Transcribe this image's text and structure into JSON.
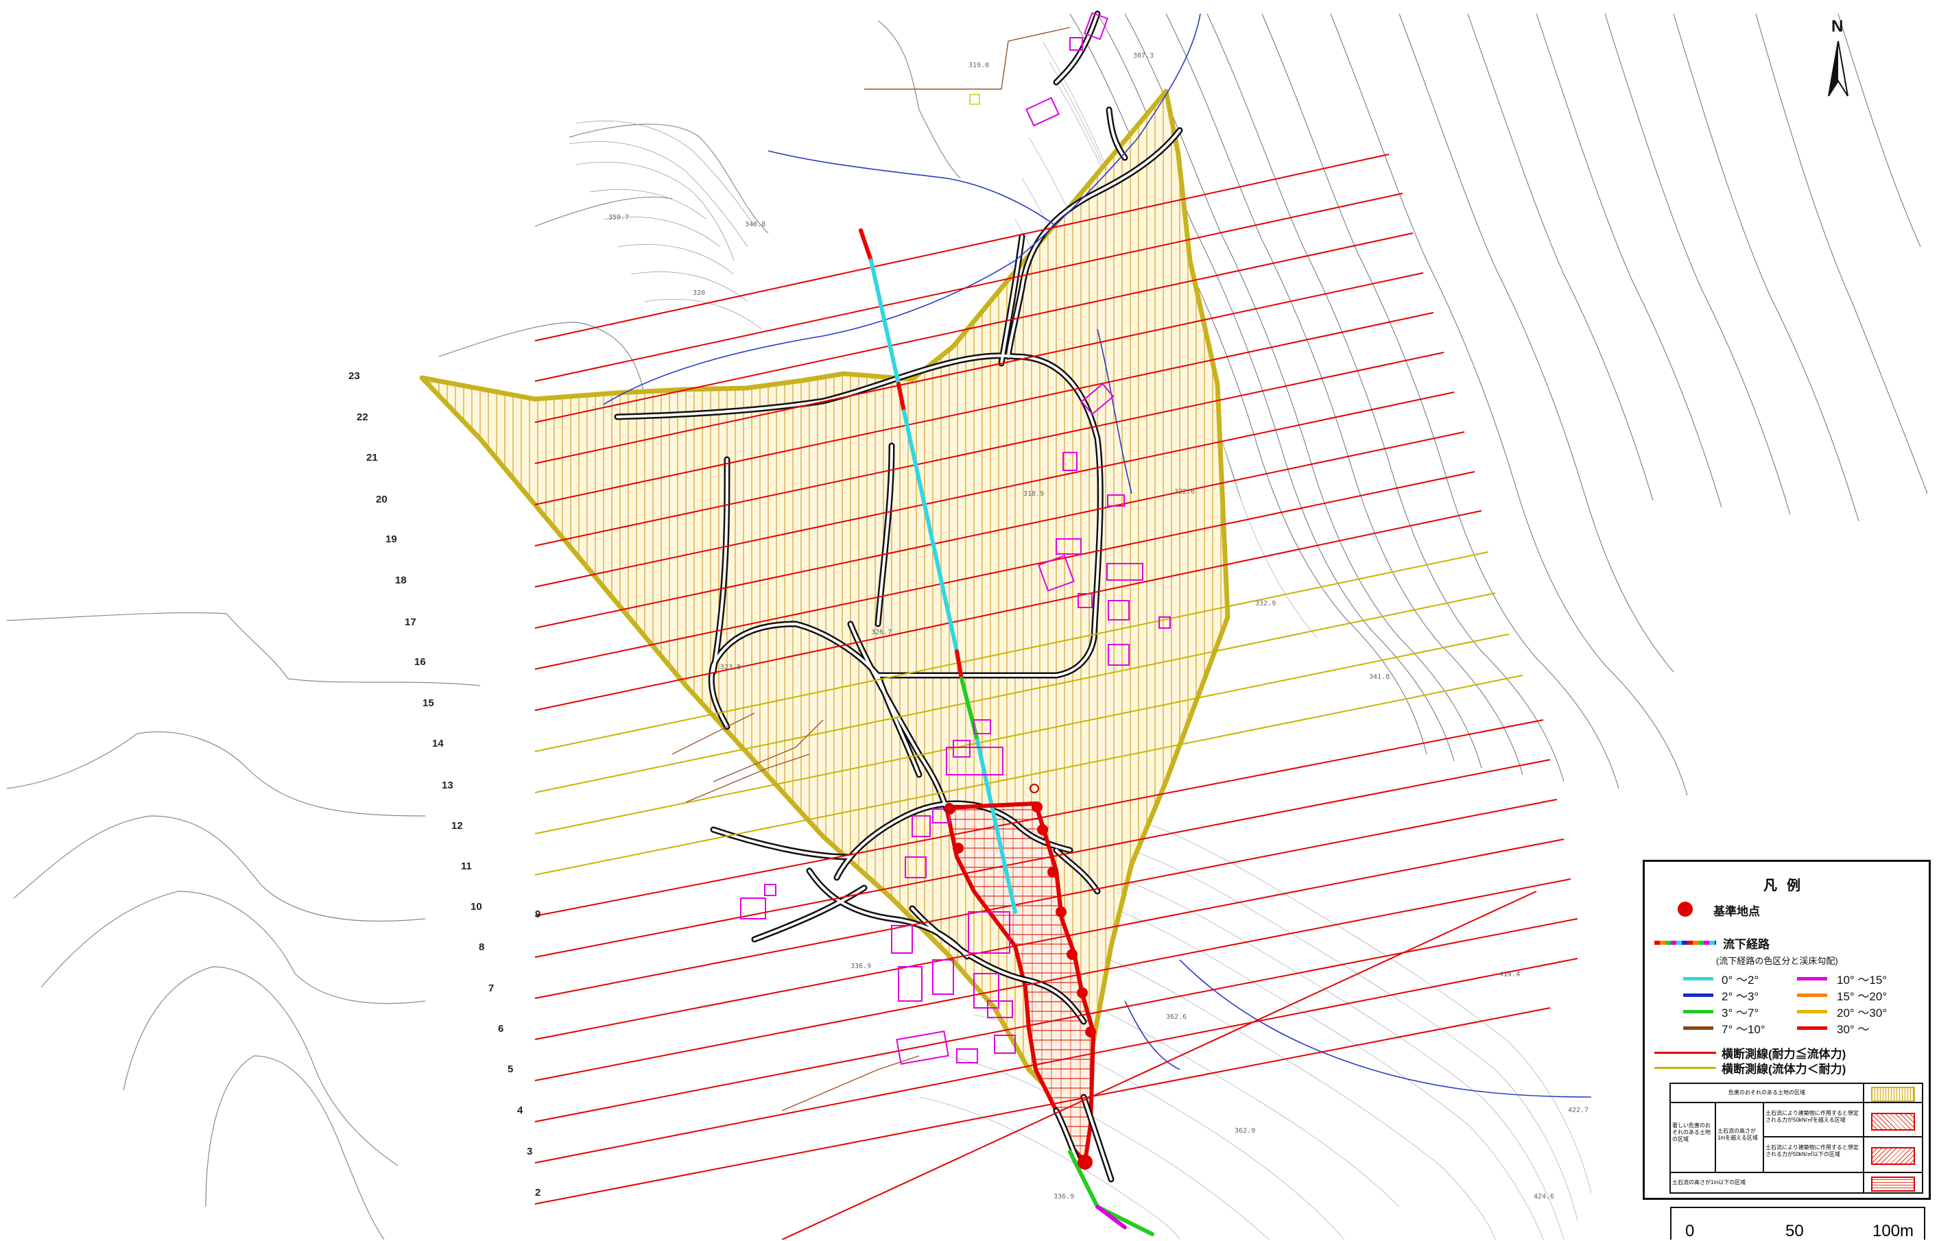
{
  "sections": [
    "23",
    "22",
    "21",
    "20",
    "19",
    "18",
    "17",
    "16",
    "15",
    "14",
    "13",
    "12",
    "11",
    "10",
    "9",
    "8",
    "7",
    "6",
    "5",
    "4",
    "3",
    "2"
  ],
  "elevation_labels": [
    "319.0",
    "307.3",
    "359.7",
    "348.8",
    "320",
    "318.9",
    "322.6",
    "332.9",
    "341.8",
    "336.9",
    "362.6",
    "362.9",
    "414.4",
    "422.7",
    "424.6",
    "336.9",
    "326.7",
    "323.8"
  ],
  "north_label": "N",
  "legend": {
    "title": "凡例",
    "reference_point": "基準地点",
    "flow_path": "流下経路",
    "flow_path_note": "(流下経路の色区分と渓床勾配)",
    "gradients": [
      {
        "label": "0° 〜2°",
        "color": "#33d6e0"
      },
      {
        "label": "10° 〜15°",
        "color": "#e000e0"
      },
      {
        "label": "2° 〜3°",
        "color": "#1a2ccc"
      },
      {
        "label": "15° 〜20°",
        "color": "#ff7f00"
      },
      {
        "label": "3° 〜7°",
        "color": "#22cc22"
      },
      {
        "label": "20° 〜30°",
        "color": "#e8b000"
      },
      {
        "label": "7° 〜10°",
        "color": "#8b4513"
      },
      {
        "label": "30° 〜",
        "color": "#ee0000"
      }
    ],
    "section_red": "横断測線(耐力≦流体力)",
    "section_yellow": "横断測線(流体力＜耐力)",
    "zone_top": "危害のおそれのある土地の区域",
    "zone_left": "著しい危害のおそれのある土地の区域",
    "zone_mid": "土石流の高さが1mを越える区域",
    "zone_a": "土石流により建築物に作用すると想定される力が50kN/㎡を越える区域",
    "zone_b": "土石流により建築物に作用すると想定される力が50kN/㎡以下の区域",
    "zone_c": "土石流の高さが1m以下の区域"
  },
  "scale": {
    "labels": [
      "0",
      "50",
      "100m"
    ]
  },
  "colors": {
    "hazard_outline": "#c8b21e",
    "hazard_fill": "#fff6d9",
    "hazard_hatch": "#d8b040",
    "danger": "#e00000",
    "section_red": "#e60000",
    "section_yellow": "#c8b400",
    "road": "#111111",
    "contour": "#888888"
  }
}
